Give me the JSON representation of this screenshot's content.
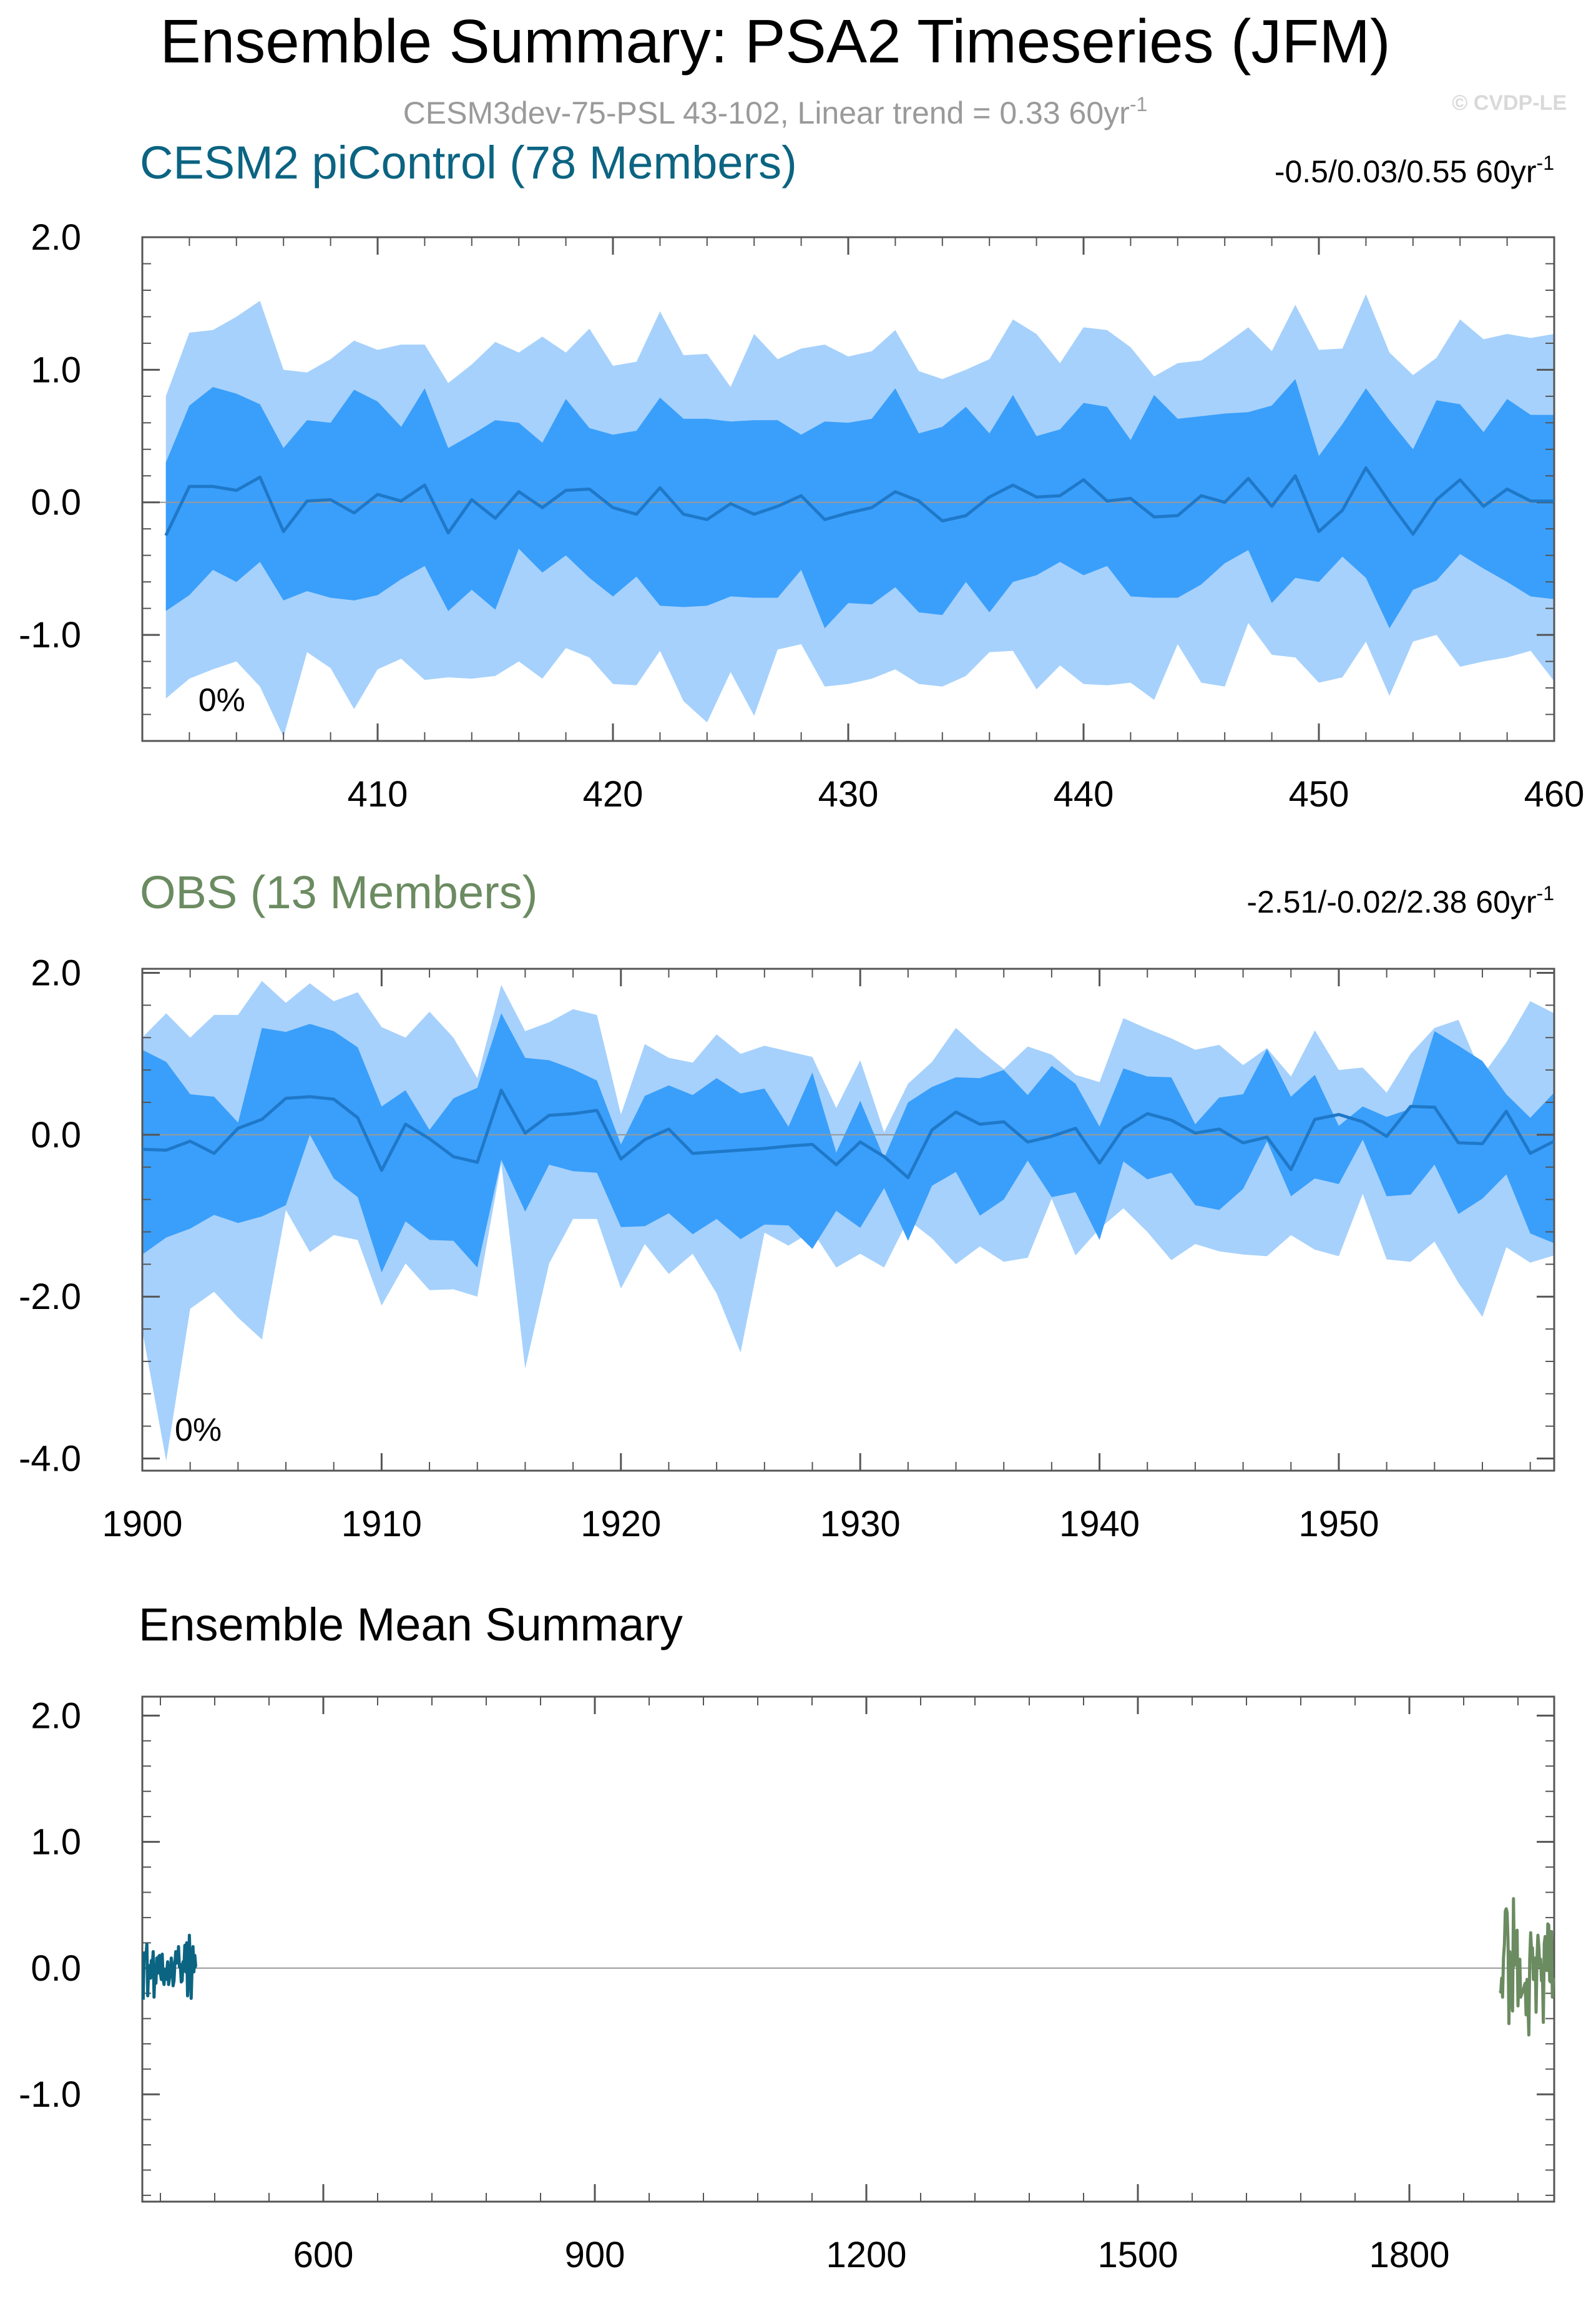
{
  "title": "Ensemble Summary: PSA2 Timeseries (JFM)",
  "subtitle_text": "CESM3dev-75-PSL 43-102, Linear trend = 0.33 60yr",
  "subtitle_sup": "-1",
  "watermark": "© CVDP-LE",
  "colors": {
    "outer_band": "#a6d1fc",
    "inner_band": "#3a9ffb",
    "mean_line": "#1f78c8",
    "cesm_title": "#0b6482",
    "obs_title": "#6b8b61",
    "zero_line": "#999999"
  },
  "chart_data": [
    {
      "id": "cesm",
      "type": "area",
      "title": "CESM2 piControl (78 Members)",
      "trend_text": "-0.5/0.03/0.55 60yr",
      "trend_sup": "-1",
      "pct_label": "0%",
      "xlim": [
        400,
        460
      ],
      "ylim": [
        -1.8,
        2.0
      ],
      "xticks": [
        410,
        420,
        430,
        440,
        450,
        460
      ],
      "xtick_labels": [
        "410",
        "420",
        "430",
        "440",
        "450",
        "460"
      ],
      "xminor_step": 2,
      "yticks": [
        2.0,
        1.0,
        0.0,
        -1.0
      ],
      "ytick_labels": [
        "2.0",
        "1.0",
        "0.0",
        "-1.0"
      ],
      "yminor_step": 0.2,
      "x": [
        401,
        402,
        403,
        404,
        405,
        406,
        407,
        408,
        409,
        410,
        411,
        412,
        413,
        414,
        415,
        416,
        417,
        418,
        419,
        420,
        421,
        422,
        423,
        424,
        425,
        426,
        427,
        428,
        429,
        430,
        431,
        432,
        433,
        434,
        435,
        436,
        437,
        438,
        439,
        440,
        441,
        442,
        443,
        444,
        445,
        446,
        447,
        448,
        449,
        450,
        451,
        452,
        453,
        454,
        455,
        456,
        457,
        458,
        459,
        460
      ],
      "max": [
        0.8,
        1.28,
        1.3,
        1.4,
        1.52,
        1.0,
        0.98,
        1.08,
        1.22,
        1.15,
        1.19,
        1.19,
        0.9,
        1.04,
        1.21,
        1.13,
        1.25,
        1.13,
        1.31,
        1.03,
        1.06,
        1.44,
        1.11,
        1.12,
        0.87,
        1.27,
        1.08,
        1.16,
        1.19,
        1.1,
        1.14,
        1.3,
        0.99,
        0.93,
        1.0,
        1.08,
        1.38,
        1.27,
        1.05,
        1.32,
        1.3,
        1.17,
        0.95,
        1.05,
        1.07,
        1.19,
        1.32,
        1.14,
        1.49,
        1.15,
        1.16,
        1.57,
        1.13,
        0.96,
        1.09,
        1.38,
        1.23,
        1.27,
        1.24,
        1.27
      ],
      "q_hi": [
        0.3,
        0.73,
        0.87,
        0.82,
        0.74,
        0.41,
        0.62,
        0.6,
        0.85,
        0.76,
        0.57,
        0.86,
        0.41,
        0.51,
        0.62,
        0.6,
        0.45,
        0.78,
        0.56,
        0.51,
        0.54,
        0.79,
        0.63,
        0.63,
        0.61,
        0.62,
        0.62,
        0.51,
        0.61,
        0.6,
        0.63,
        0.86,
        0.52,
        0.57,
        0.72,
        0.52,
        0.81,
        0.5,
        0.55,
        0.75,
        0.72,
        0.47,
        0.81,
        0.63,
        0.65,
        0.67,
        0.68,
        0.73,
        0.93,
        0.35,
        0.59,
        0.86,
        0.62,
        0.4,
        0.77,
        0.74,
        0.53,
        0.78,
        0.66,
        0.66
      ],
      "mean": [
        -0.25,
        0.12,
        0.12,
        0.09,
        0.19,
        -0.22,
        0.01,
        0.02,
        -0.08,
        0.06,
        0.01,
        0.13,
        -0.23,
        0.02,
        -0.12,
        0.08,
        -0.04,
        0.09,
        0.1,
        -0.04,
        -0.09,
        0.11,
        -0.09,
        -0.13,
        -0.01,
        -0.09,
        -0.03,
        0.05,
        -0.13,
        -0.08,
        -0.04,
        0.08,
        0.01,
        -0.14,
        -0.1,
        0.04,
        0.13,
        0.04,
        0.05,
        0.17,
        0.01,
        0.03,
        -0.11,
        -0.1,
        0.05,
        0.0,
        0.18,
        -0.03,
        0.2,
        -0.22,
        -0.06,
        0.26,
        0.0,
        -0.24,
        0.02,
        0.17,
        -0.03,
        0.1,
        0.01,
        0.01
      ],
      "q_lo": [
        -0.82,
        -0.7,
        -0.51,
        -0.6,
        -0.45,
        -0.74,
        -0.67,
        -0.72,
        -0.74,
        -0.7,
        -0.58,
        -0.48,
        -0.82,
        -0.66,
        -0.81,
        -0.35,
        -0.53,
        -0.4,
        -0.57,
        -0.71,
        -0.56,
        -0.78,
        -0.79,
        -0.78,
        -0.71,
        -0.72,
        -0.72,
        -0.51,
        -0.95,
        -0.76,
        -0.77,
        -0.64,
        -0.83,
        -0.85,
        -0.6,
        -0.83,
        -0.6,
        -0.55,
        -0.45,
        -0.55,
        -0.48,
        -0.71,
        -0.72,
        -0.72,
        -0.62,
        -0.46,
        -0.36,
        -0.76,
        -0.57,
        -0.6,
        -0.41,
        -0.57,
        -0.95,
        -0.66,
        -0.59,
        -0.39,
        -0.5,
        -0.6,
        -0.71,
        -0.73
      ],
      "min": [
        -1.48,
        -1.33,
        -1.26,
        -1.2,
        -1.39,
        -1.77,
        -1.13,
        -1.25,
        -1.56,
        -1.26,
        -1.18,
        -1.34,
        -1.32,
        -1.33,
        -1.31,
        -1.2,
        -1.33,
        -1.1,
        -1.17,
        -1.37,
        -1.38,
        -1.12,
        -1.5,
        -1.66,
        -1.28,
        -1.61,
        -1.11,
        -1.07,
        -1.39,
        -1.37,
        -1.33,
        -1.26,
        -1.37,
        -1.39,
        -1.31,
        -1.13,
        -1.12,
        -1.41,
        -1.23,
        -1.37,
        -1.38,
        -1.36,
        -1.49,
        -1.07,
        -1.36,
        -1.39,
        -0.91,
        -1.15,
        -1.17,
        -1.36,
        -1.32,
        -1.05,
        -1.46,
        -1.05,
        -1.0,
        -1.24,
        -1.2,
        -1.17,
        -1.12,
        -1.35
      ]
    },
    {
      "id": "obs",
      "type": "area",
      "title": "OBS (13 Members)",
      "trend_text": "-2.51/-0.02/2.38 60yr",
      "trend_sup": "-1",
      "pct_label": "0%",
      "xlim": [
        1900,
        1959
      ],
      "ylim": [
        -4.15,
        2.05
      ],
      "xticks": [
        1900,
        1910,
        1920,
        1930,
        1940,
        1950
      ],
      "xtick_labels": [
        "1900",
        "1910",
        "1920",
        "1930",
        "1940",
        "1950"
      ],
      "xminor_step": 2,
      "yticks": [
        2.0,
        0.0,
        -2.0,
        -4.0
      ],
      "ytick_labels": [
        "2.0",
        "0.0",
        "-2.0",
        "-4.0"
      ],
      "yminor_step": 0.4,
      "x": [
        1900,
        1901,
        1902,
        1903,
        1904,
        1905,
        1906,
        1907,
        1908,
        1909,
        1910,
        1911,
        1912,
        1913,
        1914,
        1915,
        1916,
        1917,
        1918,
        1919,
        1920,
        1921,
        1922,
        1923,
        1924,
        1925,
        1926,
        1927,
        1928,
        1929,
        1930,
        1931,
        1932,
        1933,
        1934,
        1935,
        1936,
        1937,
        1938,
        1939,
        1940,
        1941,
        1942,
        1943,
        1944,
        1945,
        1946,
        1947,
        1948,
        1949,
        1950,
        1951,
        1952,
        1953,
        1954,
        1955,
        1956,
        1957,
        1958,
        1959
      ],
      "max": [
        1.2,
        1.5,
        1.2,
        1.48,
        1.48,
        1.9,
        1.63,
        1.87,
        1.65,
        1.76,
        1.33,
        1.2,
        1.52,
        1.2,
        0.7,
        1.85,
        1.28,
        1.39,
        1.55,
        1.48,
        0.25,
        1.12,
        0.95,
        0.89,
        1.24,
        1.0,
        1.1,
        1.03,
        0.96,
        0.33,
        0.92,
        0.03,
        0.63,
        0.9,
        1.32,
        1.05,
        0.81,
        1.09,
        0.99,
        0.74,
        0.65,
        1.44,
        1.31,
        1.19,
        1.05,
        1.11,
        0.86,
        1.07,
        0.72,
        1.29,
        0.8,
        0.83,
        0.52,
        1.0,
        1.32,
        1.42,
        0.73,
        1.14,
        1.65,
        1.5
      ],
      "q_hi": [
        1.05,
        0.9,
        0.5,
        0.47,
        0.15,
        1.32,
        1.27,
        1.37,
        1.28,
        1.08,
        0.35,
        0.55,
        0.06,
        0.45,
        0.58,
        1.5,
        0.95,
        0.92,
        0.81,
        0.67,
        -0.12,
        0.48,
        0.61,
        0.49,
        0.7,
        0.51,
        0.57,
        0.1,
        0.77,
        -0.22,
        0.42,
        -0.29,
        0.4,
        0.59,
        0.71,
        0.7,
        0.8,
        0.49,
        0.85,
        0.63,
        0.1,
        0.82,
        0.72,
        0.71,
        0.13,
        0.46,
        0.5,
        1.06,
        0.47,
        0.74,
        0.11,
        0.35,
        0.22,
        0.32,
        1.28,
        1.1,
        0.91,
        0.5,
        0.21,
        0.52
      ],
      "mean": [
        -0.18,
        -0.19,
        -0.08,
        -0.23,
        0.08,
        0.19,
        0.45,
        0.47,
        0.44,
        0.21,
        -0.44,
        0.13,
        -0.05,
        -0.27,
        -0.34,
        0.55,
        0.02,
        0.24,
        0.26,
        0.3,
        -0.3,
        -0.06,
        0.07,
        -0.23,
        -0.21,
        -0.19,
        -0.17,
        -0.14,
        -0.12,
        -0.37,
        -0.09,
        -0.27,
        -0.53,
        0.06,
        0.28,
        0.13,
        0.16,
        -0.09,
        -0.02,
        0.08,
        -0.35,
        0.08,
        0.26,
        0.18,
        0.02,
        0.07,
        -0.1,
        -0.03,
        -0.43,
        0.19,
        0.25,
        0.16,
        -0.02,
        0.35,
        0.34,
        -0.1,
        -0.11,
        0.29,
        -0.23,
        -0.08
      ],
      "q_lo": [
        -1.48,
        -1.27,
        -1.16,
        -0.99,
        -1.09,
        -1.01,
        -0.87,
        0.0,
        -0.54,
        -0.77,
        -1.7,
        -1.07,
        -1.3,
        -1.31,
        -1.64,
        -0.31,
        -0.95,
        -0.37,
        -0.45,
        -0.47,
        -1.14,
        -1.13,
        -0.97,
        -1.23,
        -1.04,
        -1.29,
        -1.11,
        -1.12,
        -1.41,
        -0.94,
        -1.15,
        -0.66,
        -1.31,
        -0.63,
        -0.46,
        -1.0,
        -0.8,
        -0.32,
        -0.77,
        -0.71,
        -1.3,
        -0.33,
        -0.55,
        -0.47,
        -0.87,
        -0.93,
        -0.67,
        -0.08,
        -0.76,
        -0.54,
        -0.61,
        -0.06,
        -0.76,
        -0.74,
        -0.37,
        -0.98,
        -0.79,
        -0.49,
        -1.22,
        -1.34
      ],
      "min": [
        -2.42,
        -4.03,
        -2.15,
        -1.94,
        -2.26,
        -2.53,
        -0.93,
        -1.45,
        -1.24,
        -1.3,
        -2.11,
        -1.59,
        -1.92,
        -1.91,
        -2.0,
        -0.35,
        -2.89,
        -1.59,
        -1.04,
        -1.04,
        -1.9,
        -1.35,
        -1.72,
        -1.47,
        -1.96,
        -2.69,
        -1.21,
        -1.37,
        -1.19,
        -1.64,
        -1.47,
        -1.64,
        -1.05,
        -1.28,
        -1.6,
        -1.38,
        -1.57,
        -1.52,
        -0.79,
        -1.49,
        -1.16,
        -0.91,
        -1.2,
        -1.55,
        -1.35,
        -1.44,
        -1.48,
        -1.5,
        -1.24,
        -1.42,
        -1.5,
        -0.73,
        -1.54,
        -1.57,
        -1.32,
        -1.83,
        -2.25,
        -1.39,
        -1.58,
        -1.49
      ]
    },
    {
      "id": "summary",
      "type": "line",
      "title": "Ensemble Mean Summary",
      "xlim": [
        400,
        1960
      ],
      "ylim": [
        -1.85,
        2.15
      ],
      "xticks": [
        600,
        900,
        1200,
        1500,
        1800
      ],
      "xtick_labels": [
        "600",
        "900",
        "1200",
        "1500",
        "1800"
      ],
      "xminor_step": 60,
      "yticks": [
        2.0,
        1.0,
        0.0,
        -1.0
      ],
      "ytick_labels": [
        "2.0",
        "1.0",
        "0.0",
        "-1.0"
      ],
      "yminor_step": 0.2,
      "series": [
        {
          "name": "CESM2 piControl",
          "x": [
            401,
            402,
            403,
            404,
            405,
            406,
            407,
            408,
            409,
            410,
            411,
            412,
            413,
            414,
            415,
            416,
            417,
            418,
            419,
            420,
            421,
            422,
            423,
            424,
            425,
            426,
            427,
            428,
            429,
            430,
            431,
            432,
            433,
            434,
            435,
            436,
            437,
            438,
            439,
            440,
            441,
            442,
            443,
            444,
            445,
            446,
            447,
            448,
            449,
            450,
            451,
            452,
            453,
            454,
            455,
            456,
            457,
            458,
            459,
            460
          ],
          "values": [
            -0.25,
            0.12,
            0.12,
            0.09,
            0.19,
            -0.22,
            0.01,
            0.02,
            -0.08,
            0.06,
            0.01,
            0.13,
            -0.23,
            0.02,
            -0.12,
            0.08,
            -0.04,
            0.09,
            0.1,
            -0.04,
            -0.09,
            0.11,
            -0.09,
            -0.13,
            -0.01,
            -0.09,
            -0.03,
            0.05,
            -0.13,
            -0.08,
            -0.04,
            0.08,
            0.01,
            -0.14,
            -0.1,
            0.04,
            0.13,
            0.04,
            0.05,
            0.17,
            0.01,
            0.03,
            -0.11,
            -0.1,
            0.05,
            0.0,
            0.18,
            -0.03,
            0.2,
            -0.22,
            -0.06,
            0.26,
            0.0,
            -0.24,
            0.02,
            0.17,
            -0.03,
            0.1,
            0.01,
            0.01
          ]
        },
        {
          "name": "OBS",
          "x": [
            1900,
            1901,
            1902,
            1903,
            1904,
            1905,
            1906,
            1907,
            1908,
            1909,
            1910,
            1911,
            1912,
            1913,
            1914,
            1915,
            1916,
            1917,
            1918,
            1919,
            1920,
            1921,
            1922,
            1923,
            1924,
            1925,
            1926,
            1927,
            1928,
            1929,
            1930,
            1931,
            1932,
            1933,
            1934,
            1935,
            1936,
            1937,
            1938,
            1939,
            1940,
            1941,
            1942,
            1943,
            1944,
            1945,
            1946,
            1947,
            1948,
            1949,
            1950,
            1951,
            1952,
            1953,
            1954,
            1955,
            1956,
            1957,
            1958,
            1959
          ],
          "values": [
            -0.18,
            -0.19,
            -0.08,
            -0.23,
            0.08,
            0.19,
            0.45,
            0.47,
            0.44,
            0.21,
            -0.44,
            0.13,
            -0.05,
            -0.27,
            -0.34,
            0.55,
            0.02,
            0.24,
            0.26,
            0.3,
            -0.3,
            -0.06,
            0.07,
            -0.23,
            -0.21,
            -0.19,
            -0.17,
            -0.14,
            -0.12,
            -0.37,
            -0.09,
            -0.27,
            -0.53,
            0.06,
            0.28,
            0.13,
            0.16,
            -0.09,
            -0.02,
            0.08,
            -0.35,
            0.08,
            0.26,
            0.18,
            0.02,
            0.07,
            -0.1,
            -0.03,
            -0.43,
            0.19,
            0.25,
            0.16,
            -0.02,
            0.35,
            0.34,
            -0.1,
            -0.11,
            0.29,
            -0.23,
            -0.08
          ]
        }
      ]
    }
  ]
}
